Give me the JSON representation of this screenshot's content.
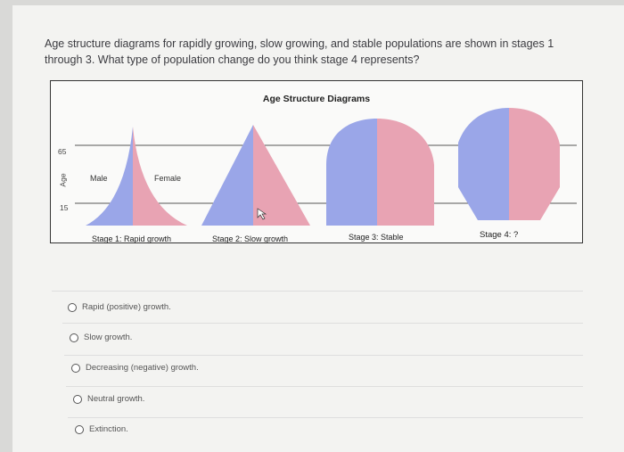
{
  "question": "Age structure diagrams for rapidly growing, slow growing, and stable populations are shown in stages 1 through 3. What type of population change do you think stage 4 represents?",
  "figure": {
    "title": "Age Structure Diagrams",
    "age_axis_label": "Age",
    "age_65": "65",
    "age_15": "15",
    "male_label": "Male",
    "female_label": "Female",
    "stages": [
      "Stage 1: Rapid growth",
      "Stage 2: Slow growth",
      "Stage 3: Stable",
      "Stage 4: ?"
    ],
    "colors": {
      "male": "#9aa6e8",
      "female": "#e8a3b3"
    }
  },
  "options": [
    "Rapid (positive) growth.",
    "Slow growth.",
    "Decreasing (negative) growth.",
    "Neutral growth.",
    "Extinction."
  ]
}
